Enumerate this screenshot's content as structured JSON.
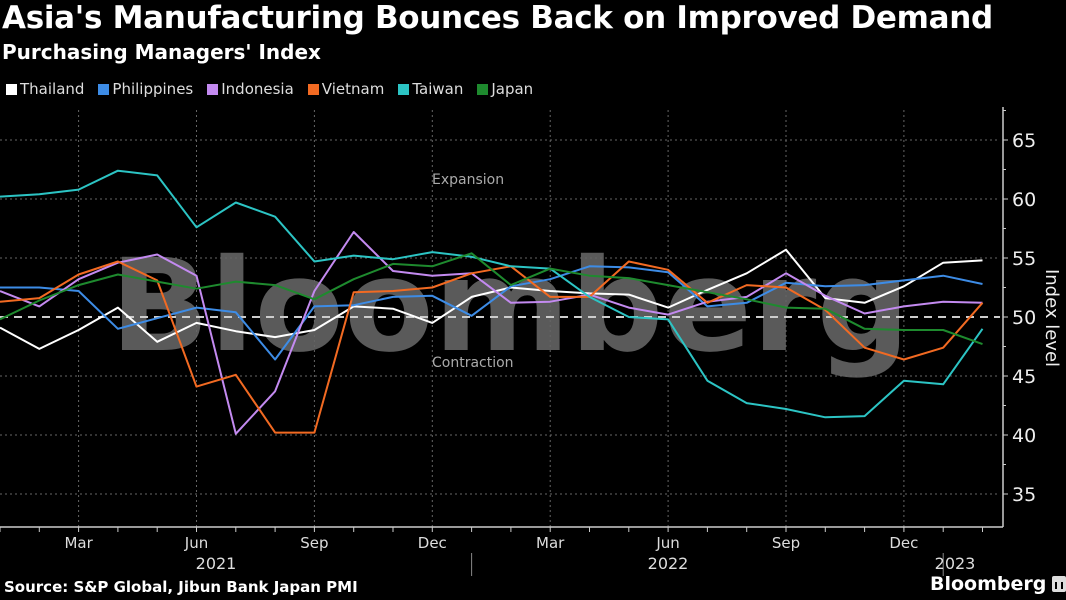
{
  "header": {
    "title": "Asia's Manufacturing Bounces Back on Improved Demand",
    "subtitle": "Purchasing Managers' Index"
  },
  "legend": [
    {
      "label": "Thailand",
      "color": "#ffffff"
    },
    {
      "label": "Philippines",
      "color": "#3d8ce6"
    },
    {
      "label": "Indonesia",
      "color": "#c38af0"
    },
    {
      "label": "Vietnam",
      "color": "#f26a22"
    },
    {
      "label": "Taiwan",
      "color": "#2cc4c4"
    },
    {
      "label": "Japan",
      "color": "#1e8a2e"
    }
  ],
  "annotations": {
    "expansion": "Expansion",
    "contraction": "Contraction",
    "watermark": "Bloomberg"
  },
  "footer": {
    "source": "Source: S&P Global, Jibun Bank Japan PMI",
    "brand": "Bloomberg"
  },
  "chart_data": {
    "type": "line",
    "title": "Asia's Manufacturing Bounces Back on Improved Demand",
    "subtitle": "Purchasing Managers' Index",
    "xlabel": "",
    "ylabel": "Index level",
    "ylim": [
      32,
      68
    ],
    "yticks": [
      35,
      40,
      45,
      50,
      55,
      60,
      65
    ],
    "reference_line": 50,
    "grid": true,
    "legend_position": "top-left",
    "x_tick_labels": [
      "Mar",
      "Jun",
      "Sep",
      "Dec",
      "Mar",
      "Jun",
      "Sep",
      "Dec"
    ],
    "year_labels": [
      "2021",
      "2022",
      "2023"
    ],
    "x": [
      "2021-01",
      "2021-02",
      "2021-03",
      "2021-04",
      "2021-05",
      "2021-06",
      "2021-07",
      "2021-08",
      "2021-09",
      "2021-10",
      "2021-11",
      "2021-12",
      "2022-01",
      "2022-02",
      "2022-03",
      "2022-04",
      "2022-05",
      "2022-06",
      "2022-07",
      "2022-08",
      "2022-09",
      "2022-10",
      "2022-11",
      "2022-12",
      "2023-01",
      "2023-02"
    ],
    "series": [
      {
        "name": "Thailand",
        "color": "#ffffff",
        "values": [
          49.1,
          47.3,
          48.9,
          50.8,
          47.9,
          49.5,
          48.8,
          48.3,
          48.9,
          50.9,
          50.7,
          49.5,
          51.7,
          52.5,
          52.2,
          52.0,
          51.9,
          50.8,
          52.3,
          53.7,
          55.7,
          51.6,
          51.2,
          52.6,
          54.6,
          54.8
        ]
      },
      {
        "name": "Philippines",
        "color": "#3d8ce6",
        "values": [
          52.5,
          52.5,
          52.2,
          49.0,
          49.9,
          50.8,
          50.4,
          46.4,
          50.9,
          51.0,
          51.7,
          51.8,
          50.1,
          52.6,
          53.2,
          54.3,
          54.2,
          53.8,
          50.9,
          51.2,
          52.9,
          52.6,
          52.7,
          53.1,
          53.5,
          52.8
        ]
      },
      {
        "name": "Indonesia",
        "color": "#c38af0",
        "values": [
          52.2,
          50.9,
          53.2,
          54.6,
          55.3,
          53.5,
          40.1,
          43.7,
          52.2,
          57.2,
          53.9,
          53.5,
          53.7,
          51.2,
          51.3,
          51.9,
          50.8,
          50.2,
          51.3,
          51.7,
          53.7,
          51.8,
          50.3,
          50.9,
          51.3,
          51.2
        ]
      },
      {
        "name": "Vietnam",
        "color": "#f26a22",
        "values": [
          51.3,
          51.6,
          53.6,
          54.7,
          53.1,
          44.1,
          45.1,
          40.2,
          40.2,
          52.1,
          52.2,
          52.5,
          53.7,
          54.3,
          51.7,
          51.7,
          54.7,
          54.0,
          51.2,
          52.7,
          52.5,
          50.6,
          47.4,
          46.4,
          47.4,
          51.2
        ]
      },
      {
        "name": "Taiwan",
        "color": "#2cc4c4",
        "values": [
          60.2,
          60.4,
          60.8,
          62.4,
          62.0,
          57.6,
          59.7,
          58.5,
          54.7,
          55.2,
          54.9,
          55.5,
          55.1,
          54.3,
          54.1,
          51.7,
          50.0,
          49.8,
          44.6,
          42.7,
          42.2,
          41.5,
          41.6,
          44.6,
          44.3,
          49.0
        ]
      },
      {
        "name": "Japan",
        "color": "#1e8a2e",
        "values": [
          49.8,
          51.4,
          52.7,
          53.6,
          53.0,
          52.4,
          53.0,
          52.7,
          51.5,
          53.2,
          54.5,
          54.3,
          55.4,
          52.7,
          54.1,
          53.5,
          53.3,
          52.7,
          52.1,
          51.5,
          50.8,
          50.7,
          49.0,
          48.9,
          48.9,
          47.7
        ]
      }
    ]
  }
}
